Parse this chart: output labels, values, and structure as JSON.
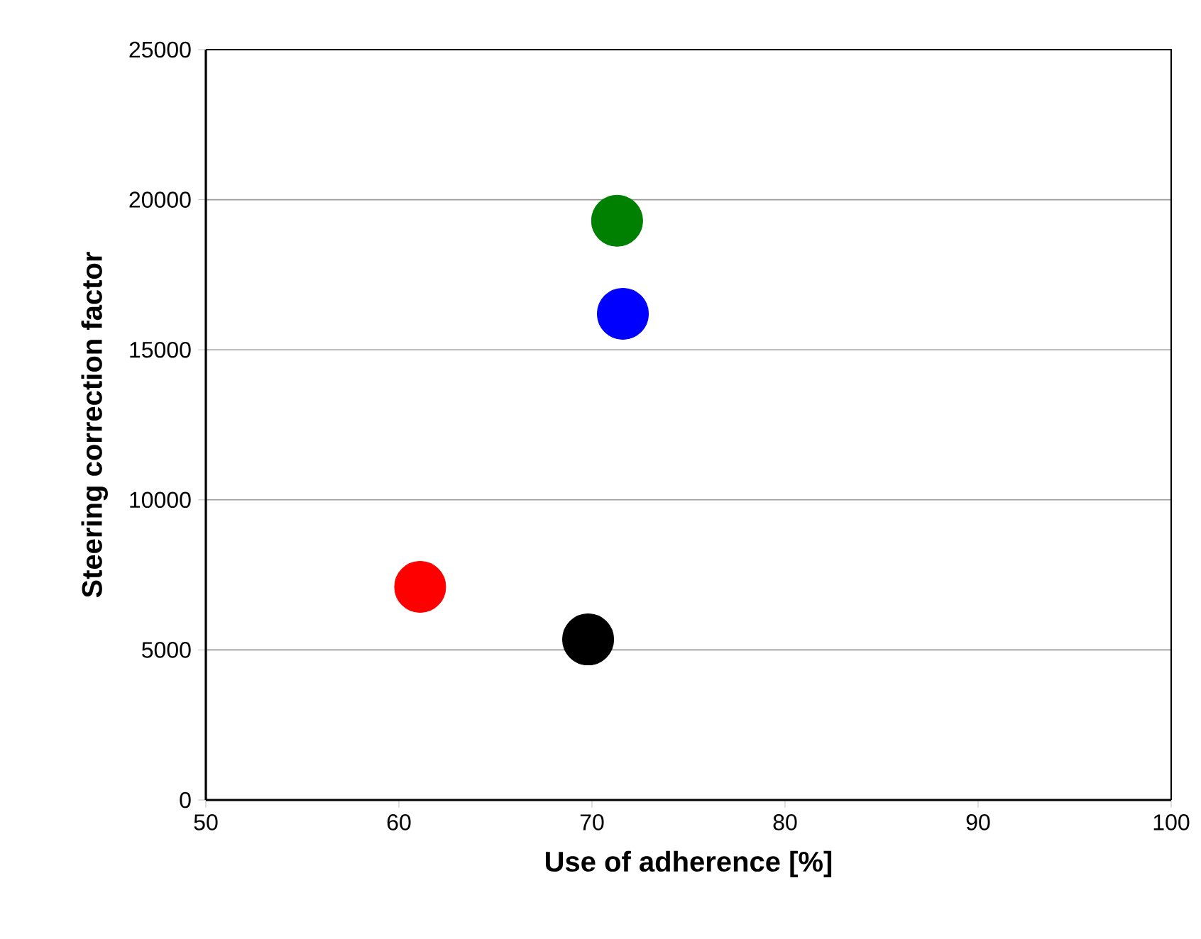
{
  "chart_data": {
    "type": "scatter",
    "xlabel": "Use of adherence [%]",
    "ylabel": "Steering correction factor",
    "x": [
      61.1,
      69.8,
      71.3,
      71.6
    ],
    "series": [
      {
        "values": [
          7100,
          5350,
          19300,
          16200
        ],
        "colors": [
          "#ff0000",
          "#000000",
          "#008000",
          "#0000ff"
        ]
      }
    ],
    "xlim": [
      50,
      100
    ],
    "xticks": [
      50,
      60,
      70,
      80,
      90,
      100
    ],
    "ylim": [
      0,
      25000
    ],
    "yticks": [
      0,
      5000,
      10000,
      15000,
      20000,
      25000
    ],
    "grid": "y",
    "marker": "circle"
  }
}
